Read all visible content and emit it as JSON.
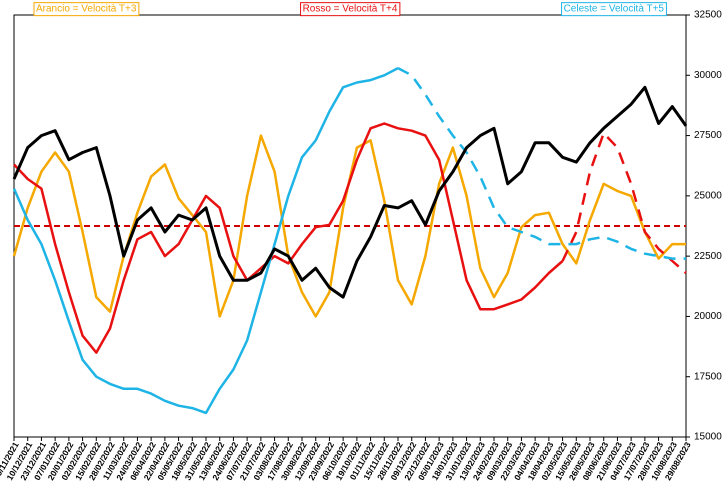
{
  "chart_data": {
    "type": "line",
    "categories": [
      "29/11/2021",
      "10/12/2021",
      "23/12/2021",
      "07/01/2022",
      "20/01/2022",
      "02/02/2022",
      "15/02/2022",
      "28/02/2022",
      "11/03/2022",
      "24/03/2022",
      "06/04/2022",
      "22/04/2022",
      "05/05/2022",
      "18/05/2022",
      "31/05/2022",
      "13/06/2022",
      "24/06/2022",
      "07/07/2022",
      "21/07/2022",
      "03/08/2022",
      "17/08/2022",
      "30/08/2022",
      "12/09/2022",
      "23/09/2022",
      "06/10/2022",
      "19/10/2022",
      "01/11/2022",
      "15/11/2022",
      "28/11/2022",
      "09/12/2022",
      "22/12/2022",
      "05/01/2023",
      "18/01/2023",
      "31/01/2023",
      "13/02/2023",
      "24/02/2023",
      "09/03/2023",
      "22/03/2023",
      "04/04/2023",
      "18/04/2023",
      "02/05/2023",
      "15/05/2023",
      "26/05/2023",
      "08/06/2023",
      "21/06/2023",
      "04/07/2023",
      "17/07/2023",
      "28/07/2023",
      "10/08/2023",
      "29/08/2023"
    ],
    "series": [
      {
        "color": "#000000",
        "width": 3,
        "values": [
          25700,
          27000,
          27500,
          27700,
          26500,
          26800,
          27000,
          25000,
          22500,
          24000,
          24500,
          23500,
          24200,
          24000,
          24500,
          22500,
          21500,
          21500,
          21800,
          22800,
          22500,
          21500,
          22000,
          21200,
          20800,
          22300,
          23300,
          24600,
          24500,
          24800,
          23800,
          25200,
          26000,
          27000,
          27500,
          27800,
          25500,
          26000,
          27200,
          27200,
          26600,
          26400,
          27200,
          27800,
          28300,
          28800,
          29500,
          28000,
          28700,
          27900
        ]
      },
      {
        "name": "Arancio = Velocità T+3",
        "color": "#f5a800",
        "width": 2.5,
        "values": [
          22500,
          24500,
          26000,
          26800,
          26000,
          23500,
          20800,
          20200,
          22500,
          24300,
          25800,
          26300,
          24900,
          24200,
          23500,
          20000,
          21500,
          25000,
          27500,
          26000,
          22500,
          21000,
          20000,
          21000,
          24500,
          27000,
          27300,
          24800,
          21500,
          20500,
          22500,
          25500,
          27000,
          25000,
          22000,
          20800,
          21800,
          23700,
          24200,
          24300,
          23000,
          22200,
          24000,
          25500,
          25200,
          25000,
          23500,
          22400,
          23000,
          23000
        ]
      },
      {
        "name": "Rosso = Velocità T+4",
        "color": "#e81010",
        "width": 2.5,
        "dash_from": 40,
        "values": [
          26300,
          25700,
          25300,
          23000,
          21000,
          19200,
          18500,
          19500,
          21500,
          23200,
          23500,
          22500,
          23000,
          24000,
          25000,
          24500,
          22500,
          21500,
          22000,
          22500,
          22200,
          23000,
          23700,
          23800,
          24800,
          26500,
          27800,
          28000,
          27800,
          27700,
          27500,
          26500,
          24000,
          21500,
          20300,
          20300,
          20500,
          20700,
          21200,
          21800,
          22300,
          23500,
          26000,
          27600,
          27000,
          25500,
          23500,
          22800,
          22300,
          21800
        ]
      },
      {
        "name": "Celeste = Velocità T+5",
        "color": "#1eb4e6",
        "width": 2.5,
        "dash_from": 28,
        "values": [
          25300,
          24000,
          23000,
          21500,
          19800,
          18200,
          17500,
          17200,
          17000,
          17000,
          16800,
          16500,
          16300,
          16200,
          16000,
          17000,
          17800,
          19000,
          21000,
          23000,
          25000,
          26600,
          27300,
          28500,
          29500,
          29700,
          29800,
          30000,
          30300,
          30000,
          29200,
          28300,
          27500,
          26800,
          25800,
          24500,
          23700,
          23500,
          23300,
          23000,
          23000,
          23000,
          23200,
          23300,
          23100,
          22800,
          22600,
          22500,
          22400,
          22400
        ]
      }
    ],
    "reference_line": {
      "value": 23750,
      "color": "#cc0000"
    },
    "ylim": [
      15000,
      32500
    ],
    "yticks": [
      15000,
      17500,
      20000,
      22500,
      25000,
      27500,
      30000,
      32500
    ],
    "y_axis_side": "right"
  }
}
